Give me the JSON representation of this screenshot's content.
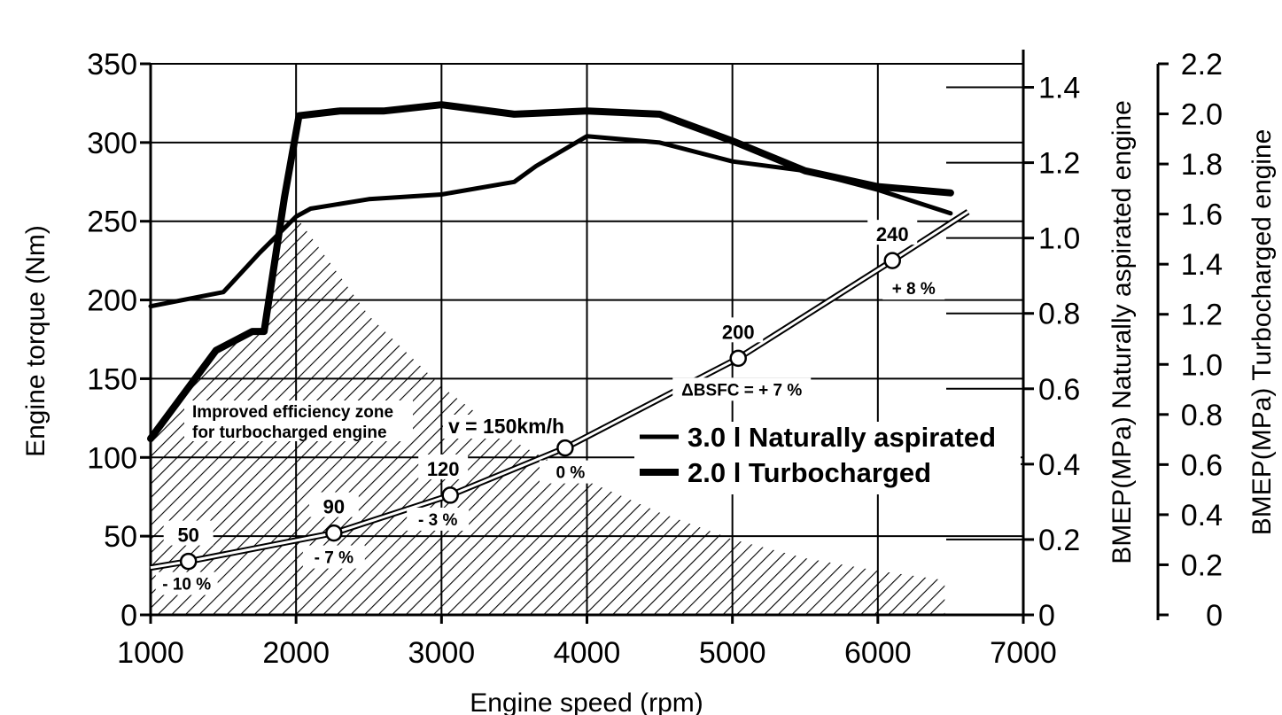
{
  "chart_data": {
    "type": "line",
    "title": "",
    "xlabel": "Engine speed (rpm)",
    "ylabel": "Engine torque (Nm)",
    "y2label_na": "BMEP(MPa)  Naturally aspirated engine",
    "y2label_tc": "BMEP(MPa)  Turbocharged engine",
    "xlim": [
      1000,
      7000
    ],
    "ylim": [
      0,
      350
    ],
    "xticks": [
      "1000",
      "2000",
      "3000",
      "4000",
      "5000",
      "6000",
      "7000"
    ],
    "yticks": [
      "0",
      "50",
      "100",
      "150",
      "200",
      "250",
      "300",
      "350"
    ],
    "bmep_na_ticks": [
      {
        "label": "0",
        "value": 0
      },
      {
        "label": "0.2",
        "value": 0.2
      },
      {
        "label": "0.4",
        "value": 0.4
      },
      {
        "label": "0.6",
        "value": 0.6
      },
      {
        "label": "0.8",
        "value": 0.8
      },
      {
        "label": "1.0",
        "value": 1.0
      },
      {
        "label": "1.2",
        "value": 1.2
      },
      {
        "label": "1.4",
        "value": 1.4
      }
    ],
    "bmep_na_max": 1.5,
    "bmep_tc_ticks": [
      {
        "label": "0",
        "value": 0
      },
      {
        "label": "0.2",
        "value": 0.2
      },
      {
        "label": "0.4",
        "value": 0.4
      },
      {
        "label": "0.6",
        "value": 0.6
      },
      {
        "label": "0.8",
        "value": 0.8
      },
      {
        "label": "1.0",
        "value": 1.0
      },
      {
        "label": "1.2",
        "value": 1.2
      },
      {
        "label": "1.4",
        "value": 1.4
      },
      {
        "label": "1.6",
        "value": 1.6
      },
      {
        "label": "1.8",
        "value": 1.8
      },
      {
        "label": "2.0",
        "value": 2.0
      },
      {
        "label": "2.2",
        "value": 2.2
      }
    ],
    "bmep_tc_max": 2.2,
    "series": [
      {
        "name": "3.0 l Naturally aspirated",
        "x": [
          1000,
          1500,
          1750,
          2000,
          2100,
          2500,
          3000,
          3500,
          3650,
          4000,
          4500,
          5000,
          5500,
          6000,
          6500
        ],
        "y": [
          196,
          205,
          230,
          253,
          258,
          264,
          267,
          275,
          285,
          304,
          300,
          288,
          282,
          270,
          255
        ]
      },
      {
        "name": "2.0 l Turbocharged",
        "x": [
          1000,
          1450,
          1700,
          1780,
          1920,
          2020,
          2300,
          2600,
          3000,
          3500,
          4000,
          4500,
          5000,
          5500,
          6000,
          6500
        ],
        "y": [
          112,
          168,
          180,
          180,
          265,
          317,
          320,
          320,
          324,
          318,
          320,
          318,
          301,
          282,
          272,
          268
        ]
      }
    ],
    "road_load": {
      "label": "v = 150km/h",
      "x_end": 6620,
      "y_end": 256,
      "points": [
        {
          "speed": "50",
          "delta": "- 10 %",
          "x": 1260,
          "y": 34
        },
        {
          "speed": "90",
          "delta": "- 7 %",
          "x": 2260,
          "y": 52
        },
        {
          "speed": "120",
          "delta": "- 3 %",
          "x": 3060,
          "y": 76
        },
        {
          "speed": "",
          "delta": "0 %",
          "x": 3850,
          "y": 106
        },
        {
          "speed": "200",
          "delta": "ΔBSFC = + 7 %",
          "x": 5040,
          "y": 163
        },
        {
          "speed": "240",
          "delta": "+ 8 %",
          "x": 6100,
          "y": 225
        }
      ]
    },
    "zone_label_1": "Improved efficiency zone",
    "zone_label_2": "for turbocharged engine",
    "zone_boundary": [
      {
        "x": 1000,
        "y": 0
      },
      {
        "x": 1000,
        "y": 112
      },
      {
        "x": 1450,
        "y": 168
      },
      {
        "x": 1700,
        "y": 180
      },
      {
        "x": 1780,
        "y": 180
      },
      {
        "x": 1920,
        "y": 250
      },
      {
        "x": 2000,
        "y": 253
      },
      {
        "x": 2500,
        "y": 190
      },
      {
        "x": 3000,
        "y": 145
      },
      {
        "x": 3500,
        "y": 110
      },
      {
        "x": 4000,
        "y": 85
      },
      {
        "x": 4500,
        "y": 65
      },
      {
        "x": 5000,
        "y": 48
      },
      {
        "x": 5500,
        "y": 36
      },
      {
        "x": 6000,
        "y": 28
      },
      {
        "x": 6460,
        "y": 22
      },
      {
        "x": 6460,
        "y": 0
      }
    ],
    "legend": [
      "3.0 l Naturally aspirated",
      "2.0 l Turbocharged"
    ],
    "legend_position": "center-right",
    "grid": true
  }
}
